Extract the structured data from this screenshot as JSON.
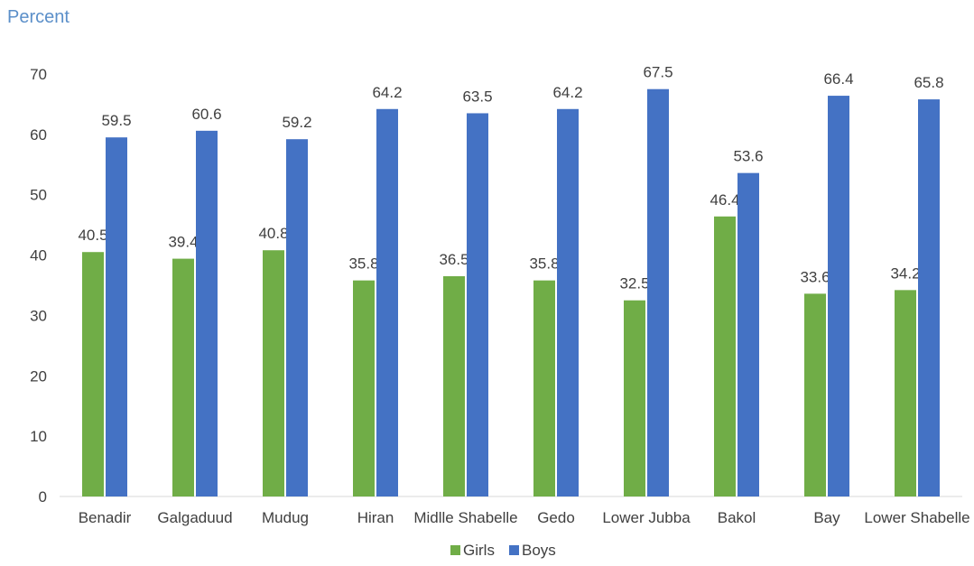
{
  "chart_data": {
    "type": "bar",
    "ylabel": "Percent",
    "xlabel": "",
    "categories": [
      "Benadir",
      "Galgaduud",
      "Mudug",
      "Hiran",
      "Midlle Shabelle",
      "Gedo",
      "Lower Jubba",
      "Bakol",
      "Bay",
      "Lower Shabelle"
    ],
    "series": [
      {
        "name": "Girls",
        "color": "#70ad47",
        "values": [
          40.5,
          39.4,
          40.8,
          35.8,
          36.5,
          35.8,
          32.5,
          46.4,
          33.6,
          34.2
        ]
      },
      {
        "name": "Boys",
        "color": "#4472c4",
        "values": [
          59.5,
          60.6,
          59.2,
          64.2,
          63.5,
          64.2,
          67.5,
          53.6,
          66.4,
          65.8
        ]
      }
    ],
    "ylim": [
      0,
      70
    ],
    "yticks": [
      0,
      10,
      20,
      30,
      40,
      50,
      60,
      70
    ],
    "grid": false,
    "legend": "bottom",
    "data_labels": true
  }
}
